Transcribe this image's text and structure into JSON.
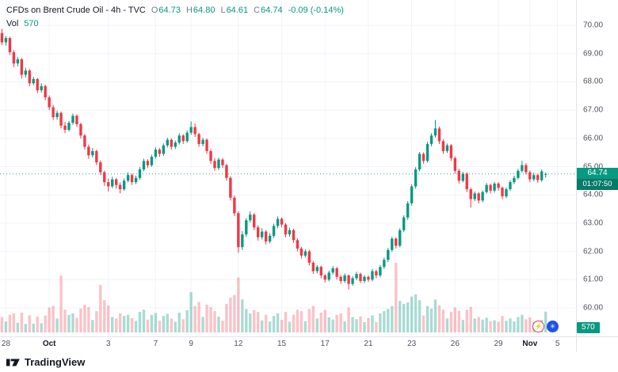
{
  "header": {
    "title": "CFDs on Brent Crude Oil - 4h - TVC",
    "o_label": "O",
    "o": "64.73",
    "h_label": "H",
    "h": "64.80",
    "l_label": "L",
    "l": "64.61",
    "c_label": "C",
    "c": "64.74",
    "change": "-0.09 (-0.14%)",
    "vol_label": "Vol",
    "vol_value": "570"
  },
  "footer": {
    "brand": "TradingView"
  },
  "icons": {
    "lightning": "⚡",
    "sparkle": "✳"
  },
  "colors": {
    "up": "#089981",
    "down": "#f23645",
    "vol_up": "rgba(8,153,129,0.35)",
    "vol_down": "rgba(242,54,69,0.30)",
    "grid": "#f0f3fa",
    "axis_border": "#e0e3eb",
    "axis_text": "#50535e",
    "last_price_line": "#089981",
    "badge_bg": "#089981",
    "countdown_bg": "#077a69"
  },
  "chart_data": {
    "type": "candlestick",
    "title": "CFDs on Brent Crude Oil",
    "interval": "4h",
    "exchange": "TVC",
    "current": {
      "open": 64.73,
      "high": 64.8,
      "low": 64.61,
      "close": 64.74,
      "change": -0.09,
      "change_pct": -0.14,
      "price_label": "64.74",
      "countdown": "01:07:50",
      "volume": 570,
      "vol_label": "570"
    },
    "y_axis": {
      "min": 60,
      "max": 70,
      "step": 1,
      "labels": [
        "70.00",
        "69.00",
        "68.00",
        "67.00",
        "66.00",
        "65.00",
        "64.00",
        "63.00",
        "62.00",
        "61.00",
        "60.00"
      ]
    },
    "x_ticks": [
      {
        "label": "28",
        "i": 1
      },
      {
        "label": "Oct",
        "i": 12
      },
      {
        "label": "3",
        "i": 27
      },
      {
        "label": "7",
        "i": 39
      },
      {
        "label": "9",
        "i": 48
      },
      {
        "label": "12",
        "i": 60
      },
      {
        "label": "15",
        "i": 71
      },
      {
        "label": "17",
        "i": 82
      },
      {
        "label": "21",
        "i": 93
      },
      {
        "label": "23",
        "i": 104
      },
      {
        "label": "26",
        "i": 115
      },
      {
        "label": "29",
        "i": 126
      },
      {
        "label": "Nov",
        "i": 134
      },
      {
        "label": "5",
        "i": 141
      }
    ],
    "total_slots": 146,
    "legend_position": "top-left",
    "grid": true,
    "candles": [
      [
        69.72,
        69.88,
        69.3,
        69.4,
        420
      ],
      [
        69.4,
        69.62,
        69.28,
        69.55,
        300
      ],
      [
        69.55,
        69.6,
        68.95,
        69.05,
        480
      ],
      [
        69.05,
        69.12,
        68.52,
        68.65,
        520
      ],
      [
        68.65,
        68.88,
        68.55,
        68.8,
        260
      ],
      [
        68.8,
        68.84,
        68.12,
        68.25,
        540
      ],
      [
        68.25,
        68.5,
        68.15,
        68.4,
        230
      ],
      [
        68.4,
        68.45,
        67.85,
        67.95,
        470
      ],
      [
        67.95,
        68.18,
        67.88,
        68.1,
        240
      ],
      [
        68.1,
        68.14,
        67.6,
        67.7,
        430
      ],
      [
        67.7,
        67.95,
        67.62,
        67.85,
        250
      ],
      [
        67.85,
        67.9,
        67.35,
        67.45,
        460
      ],
      [
        67.45,
        67.52,
        67.0,
        67.1,
        680
      ],
      [
        67.1,
        67.18,
        66.65,
        66.75,
        720
      ],
      [
        66.75,
        66.98,
        66.66,
        66.9,
        380
      ],
      [
        66.9,
        66.95,
        66.35,
        66.45,
        1550
      ],
      [
        66.45,
        66.58,
        66.18,
        66.3,
        620
      ],
      [
        66.3,
        66.62,
        66.24,
        66.55,
        480
      ],
      [
        66.55,
        66.88,
        66.48,
        66.8,
        520
      ],
      [
        66.8,
        66.85,
        66.4,
        66.5,
        400
      ],
      [
        66.5,
        66.55,
        66.0,
        66.1,
        650
      ],
      [
        66.1,
        66.16,
        65.6,
        65.7,
        760
      ],
      [
        65.7,
        65.78,
        65.28,
        65.4,
        690
      ],
      [
        65.4,
        65.66,
        65.32,
        65.55,
        340
      ],
      [
        65.55,
        65.6,
        65.05,
        65.15,
        580
      ],
      [
        65.15,
        65.22,
        64.7,
        64.8,
        1300
      ],
      [
        64.8,
        64.86,
        64.32,
        64.45,
        880
      ],
      [
        64.45,
        64.58,
        64.12,
        64.3,
        740
      ],
      [
        64.3,
        64.64,
        64.24,
        64.55,
        420
      ],
      [
        64.55,
        64.6,
        64.22,
        64.35,
        380
      ],
      [
        64.35,
        64.44,
        64.05,
        64.2,
        520
      ],
      [
        64.2,
        64.58,
        64.14,
        64.5,
        450
      ],
      [
        64.5,
        64.8,
        64.44,
        64.7,
        480
      ],
      [
        64.7,
        64.76,
        64.35,
        64.45,
        390
      ],
      [
        64.45,
        64.68,
        64.38,
        64.6,
        310
      ],
      [
        64.6,
        64.98,
        64.54,
        64.9,
        560
      ],
      [
        64.9,
        65.28,
        64.84,
        65.2,
        620
      ],
      [
        65.2,
        65.26,
        64.95,
        65.05,
        350
      ],
      [
        65.05,
        65.42,
        64.99,
        65.35,
        480
      ],
      [
        65.35,
        65.68,
        65.28,
        65.6,
        530
      ],
      [
        65.6,
        65.66,
        65.35,
        65.45,
        320
      ],
      [
        65.45,
        65.82,
        65.38,
        65.75,
        450
      ],
      [
        65.75,
        66.02,
        65.68,
        65.95,
        510
      ],
      [
        65.95,
        66.0,
        65.6,
        65.7,
        380
      ],
      [
        65.7,
        65.92,
        65.62,
        65.85,
        290
      ],
      [
        65.85,
        66.18,
        65.78,
        66.1,
        540
      ],
      [
        66.1,
        66.15,
        65.8,
        65.9,
        360
      ],
      [
        65.9,
        66.28,
        65.84,
        66.2,
        610
      ],
      [
        66.2,
        66.6,
        66.12,
        66.4,
        1100
      ],
      [
        66.4,
        66.52,
        66.05,
        66.15,
        720
      ],
      [
        66.15,
        66.2,
        65.7,
        65.8,
        830
      ],
      [
        65.8,
        66.02,
        65.72,
        65.95,
        420
      ],
      [
        65.95,
        66.0,
        65.45,
        65.55,
        760
      ],
      [
        65.55,
        65.62,
        65.1,
        65.2,
        690
      ],
      [
        65.2,
        65.3,
        64.85,
        64.95,
        580
      ],
      [
        64.95,
        65.32,
        64.88,
        65.25,
        430
      ],
      [
        65.25,
        65.3,
        64.95,
        65.05,
        320
      ],
      [
        65.05,
        65.1,
        64.5,
        64.6,
        780
      ],
      [
        64.6,
        64.66,
        63.8,
        63.9,
        950
      ],
      [
        63.9,
        63.98,
        63.25,
        63.35,
        1020
      ],
      [
        63.35,
        63.42,
        61.95,
        62.15,
        1500
      ],
      [
        62.15,
        62.72,
        62.05,
        62.6,
        900
      ],
      [
        62.6,
        63.18,
        62.52,
        63.1,
        640
      ],
      [
        63.1,
        63.42,
        63.02,
        63.3,
        520
      ],
      [
        63.3,
        63.36,
        62.75,
        62.85,
        610
      ],
      [
        62.85,
        62.92,
        62.38,
        62.5,
        560
      ],
      [
        62.5,
        62.82,
        62.42,
        62.7,
        330
      ],
      [
        62.7,
        62.76,
        62.25,
        62.35,
        480
      ],
      [
        62.35,
        62.65,
        62.28,
        62.55,
        300
      ],
      [
        62.55,
        62.98,
        62.48,
        62.9,
        450
      ],
      [
        62.9,
        63.24,
        62.82,
        63.15,
        520
      ],
      [
        63.15,
        63.2,
        62.85,
        62.95,
        340
      ],
      [
        62.95,
        63.0,
        62.5,
        62.6,
        560
      ],
      [
        62.6,
        62.84,
        62.52,
        62.75,
        290
      ],
      [
        62.75,
        62.8,
        62.3,
        62.4,
        480
      ],
      [
        62.4,
        62.46,
        62.0,
        62.1,
        620
      ],
      [
        62.1,
        62.16,
        61.75,
        61.85,
        580
      ],
      [
        61.85,
        62.08,
        61.78,
        62.0,
        310
      ],
      [
        62.0,
        62.05,
        61.5,
        61.6,
        640
      ],
      [
        61.6,
        61.66,
        61.2,
        61.3,
        720
      ],
      [
        61.3,
        61.52,
        61.22,
        61.45,
        380
      ],
      [
        61.45,
        61.5,
        61.05,
        61.15,
        540
      ],
      [
        61.15,
        61.2,
        60.9,
        61.0,
        620
      ],
      [
        61.0,
        61.32,
        60.94,
        61.25,
        410
      ],
      [
        61.25,
        61.48,
        61.18,
        61.4,
        350
      ],
      [
        61.4,
        61.45,
        61.0,
        61.1,
        480
      ],
      [
        61.1,
        61.16,
        60.85,
        60.95,
        520
      ],
      [
        60.95,
        61.22,
        60.88,
        61.15,
        300
      ],
      [
        61.15,
        61.18,
        60.65,
        60.85,
        680
      ],
      [
        60.85,
        61.12,
        60.78,
        61.05,
        420
      ],
      [
        61.05,
        61.28,
        60.98,
        61.2,
        360
      ],
      [
        61.2,
        61.25,
        60.88,
        60.95,
        440
      ],
      [
        60.95,
        61.16,
        60.88,
        61.1,
        280
      ],
      [
        61.1,
        61.15,
        60.92,
        61.0,
        390
      ],
      [
        61.0,
        61.38,
        60.94,
        61.3,
        460
      ],
      [
        61.3,
        61.35,
        61.05,
        61.15,
        280
      ],
      [
        61.15,
        61.52,
        61.08,
        61.45,
        520
      ],
      [
        61.45,
        61.78,
        61.38,
        61.7,
        580
      ],
      [
        61.7,
        62.12,
        61.62,
        62.05,
        640
      ],
      [
        62.05,
        62.52,
        61.98,
        62.45,
        720
      ],
      [
        62.45,
        62.5,
        62.1,
        62.2,
        1900
      ],
      [
        62.2,
        62.82,
        62.14,
        62.75,
        860
      ],
      [
        62.75,
        63.28,
        62.68,
        63.2,
        780
      ],
      [
        63.2,
        63.78,
        63.12,
        63.7,
        820
      ],
      [
        63.7,
        64.38,
        63.62,
        64.3,
        980
      ],
      [
        64.3,
        64.98,
        64.22,
        64.9,
        1040
      ],
      [
        64.9,
        65.52,
        64.84,
        65.45,
        880
      ],
      [
        65.45,
        65.5,
        65.1,
        65.2,
        460
      ],
      [
        65.2,
        65.88,
        65.14,
        65.8,
        720
      ],
      [
        65.8,
        66.18,
        65.72,
        66.1,
        650
      ],
      [
        66.1,
        66.65,
        66.02,
        66.35,
        900
      ],
      [
        66.35,
        66.42,
        65.8,
        65.9,
        740
      ],
      [
        65.9,
        65.96,
        65.45,
        65.55,
        620
      ],
      [
        65.55,
        65.82,
        65.48,
        65.75,
        380
      ],
      [
        65.75,
        65.8,
        65.2,
        65.3,
        560
      ],
      [
        65.3,
        65.36,
        64.75,
        64.85,
        680
      ],
      [
        64.85,
        64.92,
        64.4,
        64.5,
        590
      ],
      [
        64.5,
        64.82,
        64.44,
        64.75,
        340
      ],
      [
        64.75,
        64.8,
        64.1,
        64.2,
        620
      ],
      [
        64.2,
        64.26,
        63.55,
        63.85,
        700
      ],
      [
        63.85,
        64.12,
        63.78,
        64.05,
        380
      ],
      [
        64.05,
        64.1,
        63.7,
        63.8,
        420
      ],
      [
        63.8,
        64.16,
        63.74,
        64.1,
        350
      ],
      [
        64.1,
        64.42,
        64.04,
        64.35,
        400
      ],
      [
        64.35,
        64.4,
        64.05,
        64.15,
        310
      ],
      [
        64.15,
        64.46,
        64.08,
        64.4,
        330
      ],
      [
        64.4,
        64.45,
        64.15,
        64.25,
        290
      ],
      [
        64.25,
        64.3,
        63.85,
        63.95,
        450
      ],
      [
        63.95,
        64.26,
        63.88,
        64.2,
        320
      ],
      [
        64.2,
        64.52,
        64.14,
        64.45,
        380
      ],
      [
        64.45,
        64.68,
        64.38,
        64.6,
        300
      ],
      [
        64.6,
        64.92,
        64.54,
        64.85,
        420
      ],
      [
        64.85,
        65.2,
        64.78,
        65.05,
        480
      ],
      [
        65.05,
        65.12,
        64.72,
        64.8,
        360
      ],
      [
        64.8,
        64.86,
        64.45,
        64.55,
        410
      ],
      [
        64.55,
        64.78,
        64.48,
        64.7,
        280
      ],
      [
        64.7,
        64.75,
        64.42,
        64.52,
        300
      ],
      [
        64.52,
        64.9,
        64.46,
        64.83,
        340
      ],
      [
        64.73,
        64.8,
        64.61,
        64.74,
        570
      ]
    ]
  }
}
